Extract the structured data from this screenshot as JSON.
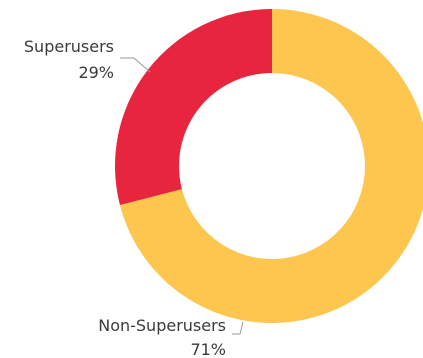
{
  "chart_data": {
    "type": "pie",
    "donut": true,
    "title": "",
    "categories": [
      "Non-Superusers",
      "Superusers"
    ],
    "values": [
      71,
      29
    ],
    "value_labels": [
      "71%",
      "29%"
    ],
    "colors": [
      "#FCC64F",
      "#E8253E"
    ],
    "start_angle_deg": 0,
    "direction": "clockwise",
    "legend": "none"
  }
}
